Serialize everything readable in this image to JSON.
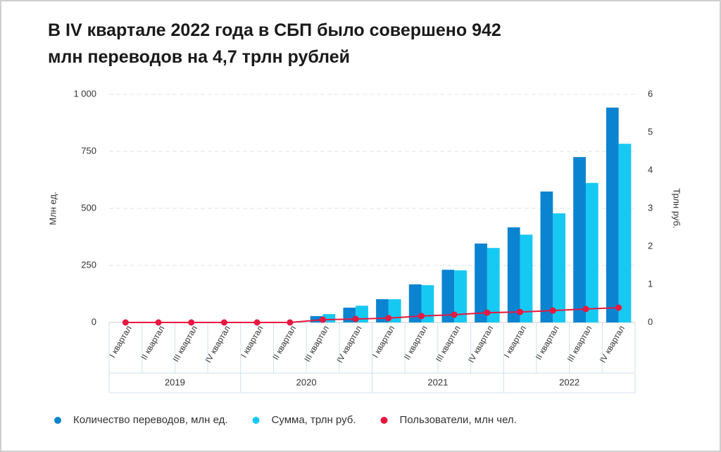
{
  "chart_data": {
    "type": "bar",
    "title": "В IV квартале 2022 года в СБП было совершено 942 млн переводов на 4,7 трлн рублей",
    "categories": [
      "I квартал",
      "II квартал",
      "III квартал",
      "IV квартал",
      "I квартал",
      "II квартал",
      "III квартал",
      "IV квартал",
      "I квартал",
      "II квартал",
      "III квартал",
      "IV квартал",
      "I квартал",
      "II квартал",
      "III квартал",
      "IV квартал"
    ],
    "groups": [
      "2019",
      "2020",
      "2021",
      "2022"
    ],
    "ylabel": "Млн ед.",
    "y2label": "Трлн руб.",
    "ylim": [
      0,
      1000
    ],
    "yticks": [
      0,
      250,
      500,
      750,
      {
        "value": 1000,
        "label": "1 000"
      }
    ],
    "y2lim": [
      0,
      6
    ],
    "y2ticks": [
      0,
      1,
      2,
      3,
      4,
      5,
      6
    ],
    "grid": true,
    "series": [
      {
        "name": "Количество переводов, млн ед.",
        "color": "#0a84d0",
        "type": "bar",
        "values": [
          null,
          null,
          null,
          null,
          null,
          null,
          28,
          65,
          102,
          167,
          231,
          346,
          417,
          574,
          725,
          942
        ]
      },
      {
        "name": "Сумма, трлн руб.",
        "color": "#16c9f2",
        "type": "bar",
        "axis": "y2",
        "values": [
          null,
          null,
          null,
          null,
          null,
          null,
          0.22,
          0.44,
          0.61,
          0.98,
          1.37,
          1.96,
          2.31,
          2.87,
          3.67,
          4.7
        ]
      },
      {
        "name": "Пользователи, млн чел.",
        "color": "#e8173f",
        "type": "line",
        "values": [
          0,
          0,
          0,
          0,
          0,
          0,
          12,
          15,
          19,
          28,
          34,
          43,
          46,
          52,
          59,
          65
        ]
      }
    ]
  }
}
